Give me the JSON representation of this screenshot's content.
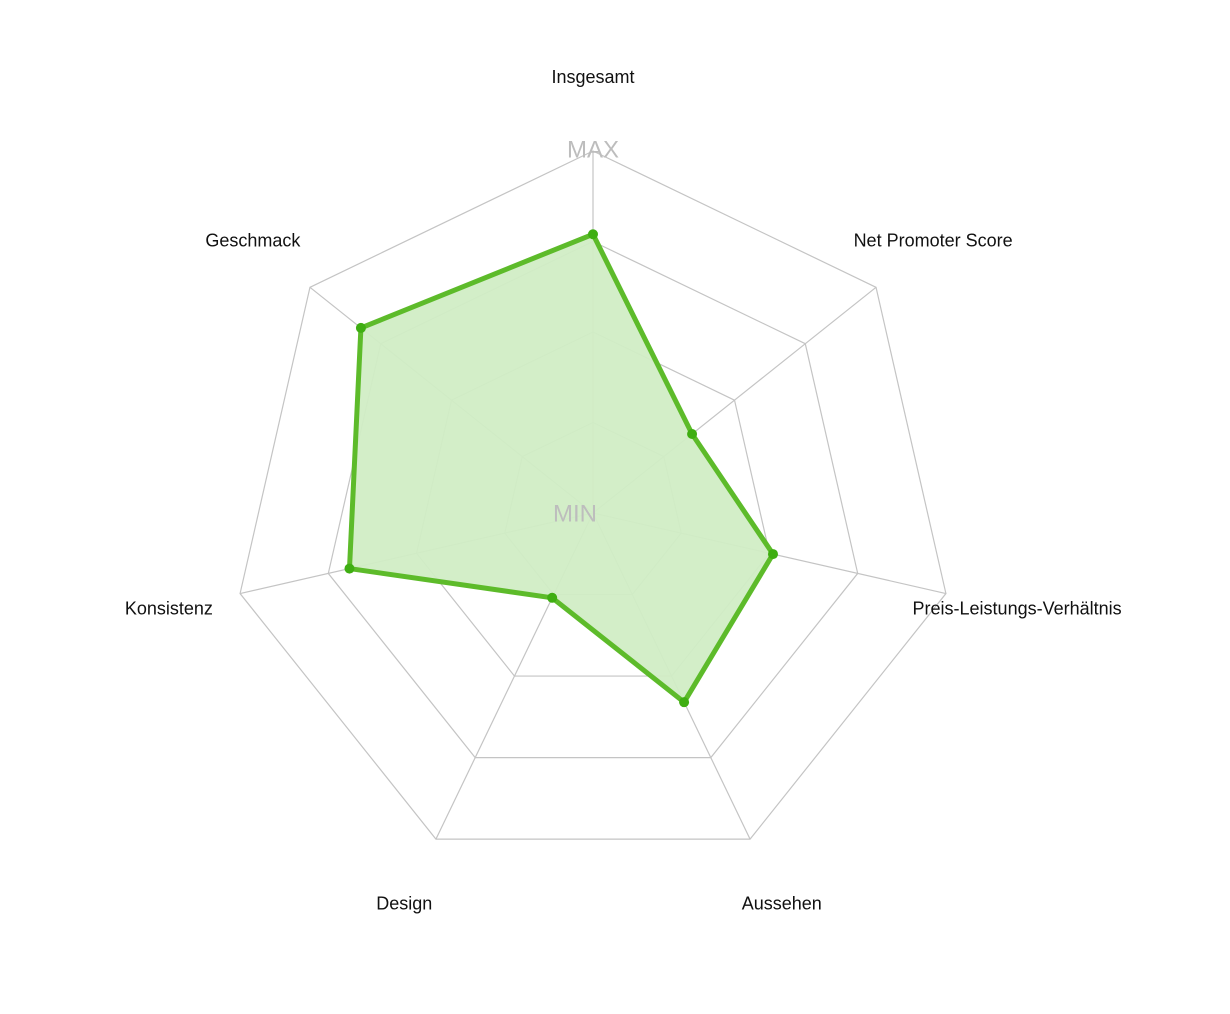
{
  "chart_data": {
    "type": "radar",
    "title": "",
    "scale": {
      "min_label": "MIN",
      "max_label": "MAX",
      "min": 0,
      "max": 100,
      "rings": 4
    },
    "axes": [
      "Insgesamt",
      "Net Promoter Score",
      "Preis-Leistungs-Verhältnis",
      "Aussehen",
      "Design",
      "Konsistenz",
      "Geschmack"
    ],
    "series": [
      {
        "values": [
          77,
          35,
          51,
          58,
          26,
          69,
          82
        ],
        "color": "#5dbb2a",
        "fill_color": "#d1edc5"
      }
    ],
    "grid": true,
    "legend": "none"
  }
}
